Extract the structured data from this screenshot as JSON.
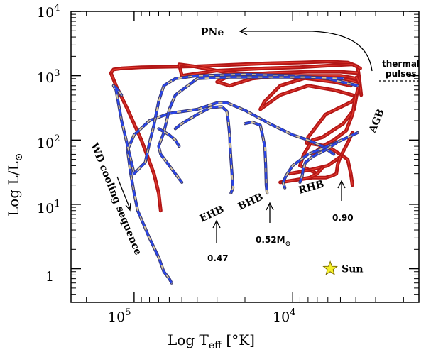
{
  "chart_data": {
    "type": "line",
    "title": "",
    "xlabel": "Log  T",
    "xlabel_sub": "eff",
    "xlabel_unit": " [°K]",
    "ylabel": "Log  L/L",
    "ylabel_sub": "⊙",
    "x_scale": "log",
    "x_reversed": true,
    "xlim": [
      250000,
      1600
    ],
    "y_scale": "log",
    "ylim": [
      0.3,
      10000
    ],
    "x_ticks": [
      {
        "value": 100000,
        "base": "10",
        "exp": "5"
      },
      {
        "value": 10000,
        "base": "10",
        "exp": "4"
      }
    ],
    "y_ticks": [
      {
        "value": 10000,
        "label": "",
        "base": "10",
        "exp": "4"
      },
      {
        "value": 1000,
        "label": "",
        "base": "10",
        "exp": "3"
      },
      {
        "value": 100,
        "label": "",
        "base": "10",
        "exp": "2"
      },
      {
        "value": 10,
        "label": "",
        "base": "10",
        "exp": "1"
      },
      {
        "value": 1,
        "label": "1",
        "base": "",
        "exp": ""
      }
    ],
    "sun": {
      "Teff": 5800,
      "L": 1.0,
      "label": "Sun"
    },
    "annotations": {
      "pne": "PNe",
      "thermal_1": "thermal",
      "thermal_2": "pulses",
      "agb": "AGB",
      "rhb": "RHB",
      "bhb": "BHB",
      "ehb": "EHB",
      "wd": "WD cooling sequence",
      "m047": "0.47",
      "m052": "0.52M",
      "m052_sub": "⊙",
      "m090": "0.90"
    },
    "series": [
      {
        "kind": "red",
        "points": [
          [
            3700,
            500
          ],
          [
            3800,
            900
          ],
          [
            3900,
            1400
          ],
          [
            4500,
            1600
          ],
          [
            6000,
            1650
          ],
          [
            9000,
            1600
          ],
          [
            15000,
            1550
          ],
          [
            40000,
            1400
          ],
          [
            90000,
            1350
          ],
          [
            120000,
            1300
          ],
          [
            135000,
            1250
          ],
          [
            140000,
            1100
          ],
          [
            130000,
            700
          ],
          [
            110000,
            300
          ],
          [
            90000,
            100
          ],
          [
            75000,
            30
          ],
          [
            70000,
            15
          ],
          [
            68000,
            8
          ]
        ]
      },
      {
        "kind": "red",
        "points": [
          [
            3750,
            1300
          ],
          [
            4200,
            1500
          ],
          [
            5500,
            1450
          ],
          [
            9000,
            1350
          ],
          [
            15000,
            1300
          ],
          [
            30000,
            1200
          ],
          [
            50000,
            1000
          ],
          [
            52000,
            1500
          ],
          [
            42000,
            1400
          ],
          [
            25000,
            1100
          ],
          [
            10000,
            1000
          ],
          [
            5000,
            1000
          ],
          [
            3900,
            900
          ]
        ]
      },
      {
        "kind": "red",
        "points": [
          [
            3900,
            1100
          ],
          [
            5000,
            1150
          ],
          [
            8000,
            1150
          ],
          [
            14000,
            1100
          ],
          [
            25000,
            1000
          ],
          [
            30000,
            800
          ],
          [
            25000,
            700
          ],
          [
            18000,
            900
          ],
          [
            12000,
            1000
          ],
          [
            8000,
            900
          ],
          [
            5500,
            800
          ],
          [
            4300,
            700
          ]
        ]
      },
      {
        "kind": "red",
        "points": [
          [
            3900,
            800
          ],
          [
            4800,
            900
          ],
          [
            8000,
            950
          ],
          [
            12000,
            700
          ],
          [
            15000,
            400
          ],
          [
            16000,
            300
          ],
          [
            12000,
            500
          ],
          [
            8000,
            700
          ],
          [
            5500,
            600
          ],
          [
            4200,
            500
          ]
        ]
      },
      {
        "kind": "red",
        "points": [
          [
            3950,
            950
          ],
          [
            3800,
            750
          ],
          [
            3950,
            500
          ],
          [
            4200,
            400
          ],
          [
            6200,
            250
          ],
          [
            8000,
            110
          ],
          [
            8200,
            90
          ],
          [
            6000,
            80
          ],
          [
            4500,
            50
          ],
          [
            4300,
            30
          ],
          [
            4200,
            20
          ]
        ]
      },
      {
        "kind": "red",
        "points": [
          [
            3900,
            600
          ],
          [
            4100,
            300
          ],
          [
            4800,
            180
          ],
          [
            6500,
            110
          ],
          [
            7500,
            100
          ],
          [
            8500,
            60
          ],
          [
            9000,
            40
          ],
          [
            7000,
            30
          ]
        ]
      },
      {
        "kind": "red",
        "points": [
          [
            4000,
            500
          ],
          [
            4200,
            250
          ],
          [
            4600,
            140
          ],
          [
            5500,
            100
          ],
          [
            6500,
            80
          ],
          [
            7500,
            60
          ]
        ]
      },
      {
        "kind": "red",
        "points": [
          [
            4200,
            130
          ],
          [
            4500,
            90
          ],
          [
            5000,
            55
          ],
          [
            6000,
            40
          ],
          [
            7500,
            35
          ],
          [
            9000,
            32
          ],
          [
            10500,
            30
          ]
        ]
      },
      {
        "kind": "red",
        "points": [
          [
            5000,
            55
          ],
          [
            5200,
            42
          ],
          [
            5300,
            30
          ],
          [
            5600,
            28
          ],
          [
            6200,
            26
          ],
          [
            7500,
            26
          ],
          [
            9500,
            24
          ]
        ]
      },
      {
        "kind": "red",
        "points": [
          [
            6500,
            37
          ],
          [
            7000,
            30
          ],
          [
            7800,
            26
          ],
          [
            9500,
            24
          ],
          [
            12000,
            22
          ]
        ]
      },
      {
        "kind": "wd",
        "points": [
          [
            5500,
            60
          ],
          [
            6500,
            80
          ],
          [
            8000,
            100
          ],
          [
            10000,
            120
          ],
          [
            14000,
            180
          ],
          [
            20000,
            290
          ],
          [
            26000,
            380
          ],
          [
            30000,
            380
          ],
          [
            40000,
            300
          ],
          [
            60000,
            260
          ],
          [
            80000,
            200
          ],
          [
            100000,
            120
          ],
          [
            110000,
            70
          ],
          [
            105000,
            30
          ],
          [
            100000,
            15
          ],
          [
            95000,
            8
          ],
          [
            80000,
            3
          ],
          [
            70000,
            1.5
          ],
          [
            65000,
            0.9
          ],
          [
            60000,
            0.7
          ],
          [
            58000,
            0.6
          ]
        ]
      },
      {
        "kind": "wd",
        "points": [
          [
            3900,
            700
          ],
          [
            6000,
            900
          ],
          [
            10000,
            1000
          ],
          [
            20000,
            1050
          ],
          [
            40000,
            1000
          ],
          [
            55000,
            900
          ],
          [
            65000,
            700
          ],
          [
            70000,
            400
          ],
          [
            75000,
            170
          ],
          [
            80000,
            90
          ],
          [
            85000,
            45
          ],
          [
            100000,
            30
          ],
          [
            120000,
            200
          ],
          [
            130000,
            600
          ],
          [
            135000,
            700
          ],
          [
            130000,
            650
          ],
          [
            120000,
            500
          ]
        ]
      },
      {
        "kind": "wd",
        "points": [
          [
            4800,
            900
          ],
          [
            8000,
            950
          ],
          [
            14000,
            950
          ],
          [
            25000,
            950
          ],
          [
            40000,
            900
          ],
          [
            55000,
            500
          ],
          [
            60000,
            300
          ],
          [
            65000,
            130
          ],
          [
            70000,
            80
          ],
          [
            68000,
            60
          ],
          [
            60000,
            40
          ],
          [
            55000,
            30
          ],
          [
            50000,
            22
          ]
        ]
      },
      {
        "kind": "wd",
        "points": [
          [
            55000,
            150
          ],
          [
            50000,
            180
          ],
          [
            40000,
            250
          ],
          [
            33000,
            320
          ],
          [
            28000,
            330
          ],
          [
            26000,
            280
          ],
          [
            25500,
            200
          ],
          [
            25000,
            120
          ],
          [
            24800,
            80
          ],
          [
            24500,
            50
          ],
          [
            24000,
            25
          ],
          [
            23800,
            18
          ],
          [
            24500,
            15
          ]
        ]
      },
      {
        "kind": "wd",
        "points": [
          [
            70000,
            150
          ],
          [
            60000,
            120
          ],
          [
            55000,
            100
          ],
          [
            52000,
            80
          ]
        ]
      },
      {
        "kind": "wd",
        "points": [
          [
            20000,
            180
          ],
          [
            18000,
            190
          ],
          [
            16000,
            170
          ],
          [
            15500,
            120
          ],
          [
            15000,
            80
          ],
          [
            14800,
            40
          ],
          [
            14700,
            20
          ],
          [
            14500,
            15
          ]
        ]
      },
      {
        "kind": "wd",
        "points": [
          [
            3900,
            130
          ],
          [
            4500,
            110
          ],
          [
            6000,
            80
          ],
          [
            8000,
            60
          ],
          [
            10000,
            40
          ],
          [
            11000,
            28
          ],
          [
            11500,
            22
          ],
          [
            11200,
            18
          ]
        ]
      },
      {
        "kind": "wd",
        "points": [
          [
            5300,
            90
          ],
          [
            6200,
            70
          ],
          [
            7500,
            55
          ],
          [
            8300,
            45
          ],
          [
            8600,
            35
          ],
          [
            8700,
            28
          ],
          [
            9000,
            22
          ]
        ]
      }
    ]
  }
}
